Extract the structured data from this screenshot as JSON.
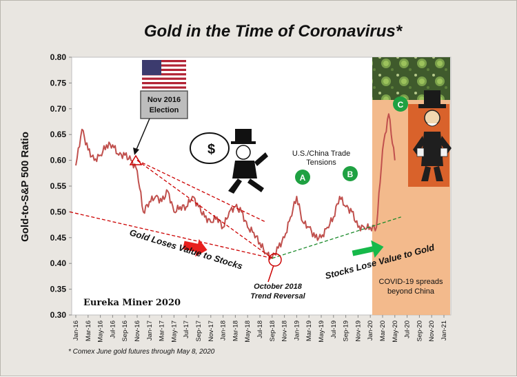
{
  "chart_data": {
    "type": "line",
    "title": "Gold in the Time of Coronavirus*",
    "ylabel": "Gold-to-S&P 500 Ratio",
    "xlabel": "",
    "ylim": [
      0.3,
      0.8
    ],
    "yticks": [
      "0.80",
      "0.75",
      "0.70",
      "0.65",
      "0.60",
      "0.55",
      "0.50",
      "0.45",
      "0.40",
      "0.35",
      "0.30"
    ],
    "yvalues": [
      0.8,
      0.75,
      0.7,
      0.65,
      0.6,
      0.55,
      0.5,
      0.45,
      0.4,
      0.35,
      0.3
    ],
    "xticks": [
      "Jan-16",
      "Mar-16",
      "May-16",
      "Jul-16",
      "Sep-16",
      "Nov-16",
      "Jan-17",
      "Mar-17",
      "May-17",
      "Jul-17",
      "Sep-17",
      "Nov-17",
      "Jan-18",
      "Mar-18",
      "May-18",
      "Jul-18",
      "Sep-18",
      "Nov-18",
      "Jan-19",
      "Mar-19",
      "May-19",
      "Jul-19",
      "Sep-19",
      "Nov-19",
      "Jan-20",
      "Mar-20",
      "May-20",
      "Jul-20",
      "Sep-20",
      "Nov-20",
      "Jan-21"
    ],
    "grid": false,
    "legend": "none",
    "series": [
      {
        "color": "#c0504d",
        "points": [
          [
            "Jan-16",
            0.59
          ],
          [
            "Feb-16",
            0.66
          ],
          [
            "Mar-16",
            0.62
          ],
          [
            "Apr-16",
            0.6
          ],
          [
            "May-16",
            0.61
          ],
          [
            "Jun-16",
            0.63
          ],
          [
            "Jul-16",
            0.63
          ],
          [
            "Aug-16",
            0.61
          ],
          [
            "Sep-16",
            0.61
          ],
          [
            "Oct-16",
            0.6
          ],
          [
            "Nov-16",
            0.58
          ],
          [
            "Dec-16",
            0.5
          ],
          [
            "Jan-17",
            0.52
          ],
          [
            "Feb-17",
            0.53
          ],
          [
            "Mar-17",
            0.52
          ],
          [
            "Apr-17",
            0.54
          ],
          [
            "May-17",
            0.5
          ],
          [
            "Jun-17",
            0.51
          ],
          [
            "Jul-17",
            0.51
          ],
          [
            "Aug-17",
            0.53
          ],
          [
            "Sep-17",
            0.51
          ],
          [
            "Oct-17",
            0.49
          ],
          [
            "Nov-17",
            0.48
          ],
          [
            "Dec-17",
            0.49
          ],
          [
            "Jan-18",
            0.47
          ],
          [
            "Feb-18",
            0.5
          ],
          [
            "Mar-18",
            0.51
          ],
          [
            "Apr-18",
            0.5
          ],
          [
            "May-18",
            0.47
          ],
          [
            "Jun-18",
            0.46
          ],
          [
            "Jul-18",
            0.44
          ],
          [
            "Aug-18",
            0.42
          ],
          [
            "Sep-18",
            0.41
          ],
          [
            "Oct-18",
            0.43
          ],
          [
            "Nov-18",
            0.45
          ],
          [
            "Dec-18",
            0.49
          ],
          [
            "Jan-19",
            0.53
          ],
          [
            "Feb-19",
            0.48
          ],
          [
            "Mar-19",
            0.47
          ],
          [
            "Apr-19",
            0.45
          ],
          [
            "May-19",
            0.45
          ],
          [
            "Jun-19",
            0.47
          ],
          [
            "Jul-19",
            0.49
          ],
          [
            "Aug-19",
            0.53
          ],
          [
            "Sep-19",
            0.51
          ],
          [
            "Oct-19",
            0.5
          ],
          [
            "Nov-19",
            0.47
          ],
          [
            "Dec-19",
            0.47
          ],
          [
            "Jan-20",
            0.47
          ],
          [
            "Feb-20",
            0.47
          ],
          [
            "Mar-20",
            0.62
          ],
          [
            "Apr-20",
            0.69
          ],
          [
            "May-20",
            0.6
          ]
        ]
      }
    ],
    "trend_lines": [
      {
        "from": [
          "Nov-16",
          0.6
        ],
        "to": [
          "Sep-18",
          0.41
        ],
        "color": "#cc0000",
        "style": "dashed"
      },
      {
        "from": [
          "Dec-15",
          0.5
        ],
        "to": [
          "Sep-18",
          0.41
        ],
        "color": "#cc0000",
        "style": "dashed"
      },
      {
        "from": [
          "Nov-16",
          0.6
        ],
        "to": [
          "Aug-18",
          0.48
        ],
        "color": "#cc0000",
        "style": "dashed"
      },
      {
        "from": [
          "Sep-18",
          0.41
        ],
        "to": [
          "Jun-20",
          0.49
        ],
        "color": "#1a8a2a",
        "style": "dashed"
      }
    ],
    "annotations": {
      "election": "Nov 2016\nElection",
      "trade": "U.S./China Trade\nTensions",
      "reversal": "October 2018\nTrend Reversal",
      "covid": "COVID-19 spreads\nbeyond China",
      "gold_loses": "Gold Loses Value to Stocks",
      "stocks_lose": "Stocks Lose Value to Gold",
      "markers": [
        "A",
        "B",
        "C"
      ],
      "watermark": "Eureka Miner 2020"
    },
    "footnote": "* Comex June gold futures through May 8, 2020"
  },
  "colors": {
    "background": "#e9e6e1",
    "plot": "#ffffff",
    "line": "#c0504d",
    "covid_band": "#f2b27f",
    "marker_green": "#1fa142",
    "down_arrow": "#e8201e",
    "up_arrow": "#16b94a"
  },
  "icons": [
    "us-flag-icon",
    "coronavirus-image",
    "monopoly-man-running-icon",
    "monopoly-man-broke-icon"
  ]
}
